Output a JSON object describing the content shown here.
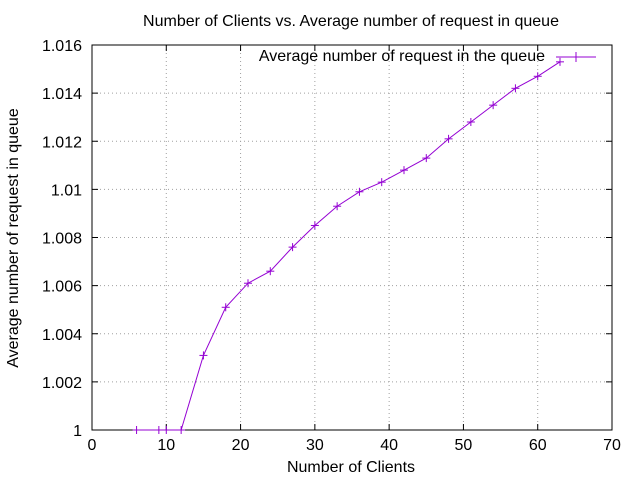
{
  "chart_data": {
    "type": "line",
    "title": "Number of Clients vs. Average number of request in queue",
    "xlabel": "Number of Clients",
    "ylabel": "Average number of request in queue",
    "xlim": [
      0,
      70
    ],
    "ylim": [
      1,
      1.016
    ],
    "xticks": [
      0,
      10,
      20,
      30,
      40,
      50,
      60,
      70
    ],
    "xtick_labels": [
      "0",
      "10",
      "20",
      "30",
      "40",
      "50",
      "60",
      "70"
    ],
    "yticks": [
      1,
      1.002,
      1.004,
      1.006,
      1.008,
      1.01,
      1.012,
      1.014,
      1.016
    ],
    "ytick_labels": [
      "1",
      "1.002",
      "1.004",
      "1.006",
      "1.008",
      "1.01",
      "1.012",
      "1.014",
      "1.016"
    ],
    "grid": true,
    "legend_position": "top-right",
    "colors": {
      "series": "#9400d3",
      "grid": "#a0a0a0",
      "axis": "#000000"
    },
    "series": [
      {
        "name": "Average number of request in the queue",
        "marker": "+",
        "x": [
          6,
          9,
          10,
          12,
          15,
          18,
          21,
          24,
          27,
          30,
          33,
          36,
          39,
          42,
          45,
          48,
          51,
          54,
          57,
          60,
          63
        ],
        "y": [
          1,
          1,
          1,
          1,
          1.0031,
          1.0051,
          1.0061,
          1.0066,
          1.0076,
          1.0085,
          1.0093,
          1.0099,
          1.0103,
          1.0108,
          1.0113,
          1.0121,
          1.0128,
          1.0135,
          1.0142,
          1.0147,
          1.0153
        ]
      }
    ]
  }
}
